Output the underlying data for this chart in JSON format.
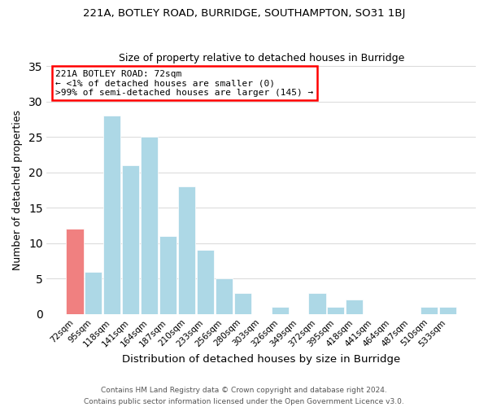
{
  "title": "221A, BOTLEY ROAD, BURRIDGE, SOUTHAMPTON, SO31 1BJ",
  "subtitle": "Size of property relative to detached houses in Burridge",
  "xlabel": "Distribution of detached houses by size in Burridge",
  "ylabel": "Number of detached properties",
  "bar_labels": [
    "72sqm",
    "95sqm",
    "118sqm",
    "141sqm",
    "164sqm",
    "187sqm",
    "210sqm",
    "233sqm",
    "256sqm",
    "280sqm",
    "303sqm",
    "326sqm",
    "349sqm",
    "372sqm",
    "395sqm",
    "418sqm",
    "441sqm",
    "464sqm",
    "487sqm",
    "510sqm",
    "533sqm"
  ],
  "bar_values": [
    12,
    6,
    28,
    21,
    25,
    11,
    18,
    9,
    5,
    3,
    0,
    1,
    0,
    3,
    1,
    2,
    0,
    0,
    0,
    1,
    1
  ],
  "bar_color_normal": "#add8e6",
  "bar_color_highlight": "#f08080",
  "highlight_index": 0,
  "ylim": [
    0,
    35
  ],
  "yticks": [
    0,
    5,
    10,
    15,
    20,
    25,
    30,
    35
  ],
  "annotation_title": "221A BOTLEY ROAD: 72sqm",
  "annotation_line1": "← <1% of detached houses are smaller (0)",
  "annotation_line2": ">99% of semi-detached houses are larger (145) →",
  "footer_line1": "Contains HM Land Registry data © Crown copyright and database right 2024.",
  "footer_line2": "Contains public sector information licensed under the Open Government Licence v3.0."
}
